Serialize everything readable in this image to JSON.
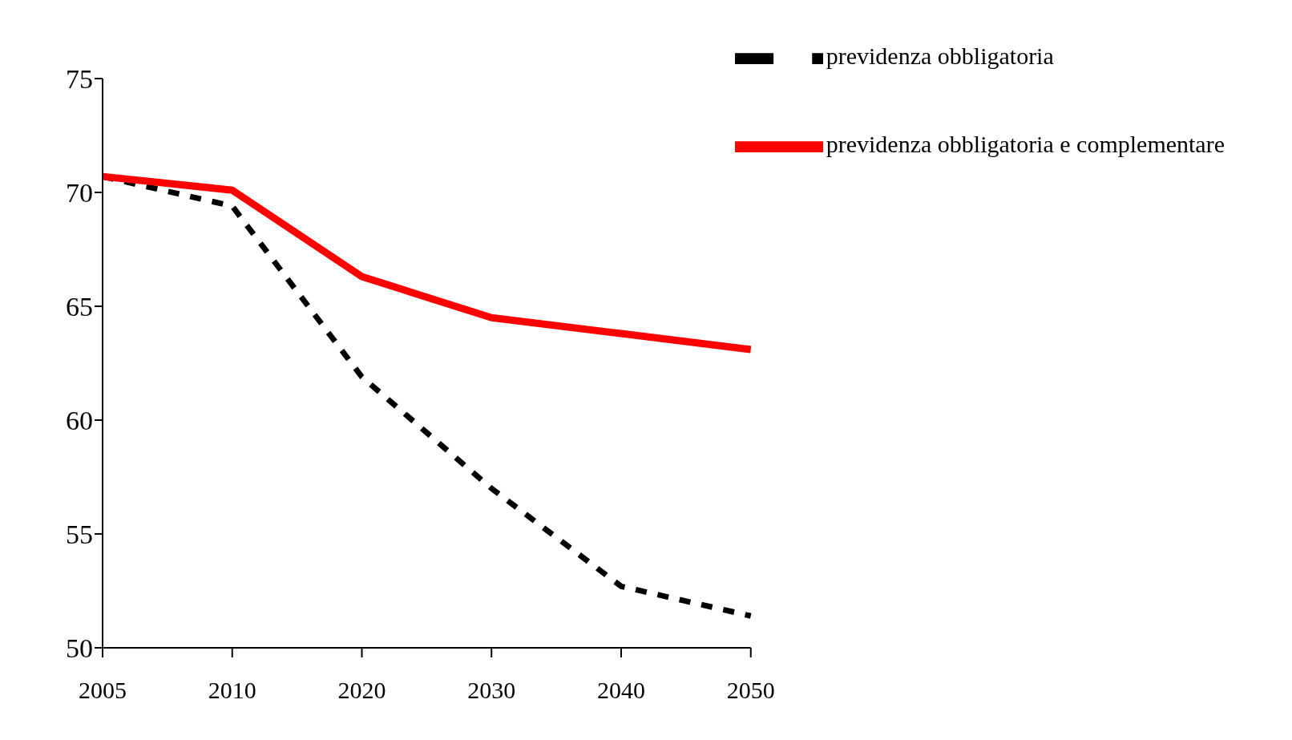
{
  "chart_data": {
    "type": "line",
    "categories": [
      "2005",
      "2010",
      "2020",
      "2030",
      "2040",
      "2050"
    ],
    "series": [
      {
        "name": "previdenza obbligatoria",
        "color": "#000000",
        "line_style": "dashed",
        "values": [
          70.7,
          69.4,
          61.9,
          57.0,
          52.7,
          51.4
        ]
      },
      {
        "name": "previdenza obbligatoria e complementare",
        "color": "#ff0000",
        "line_style": "solid",
        "values": [
          70.7,
          70.1,
          66.3,
          64.5,
          63.8,
          63.1
        ]
      }
    ],
    "ylim": [
      50,
      75
    ],
    "yticks": [
      50,
      55,
      60,
      65,
      70,
      75
    ],
    "grid": false,
    "legend": "top right",
    "marker": "none"
  }
}
